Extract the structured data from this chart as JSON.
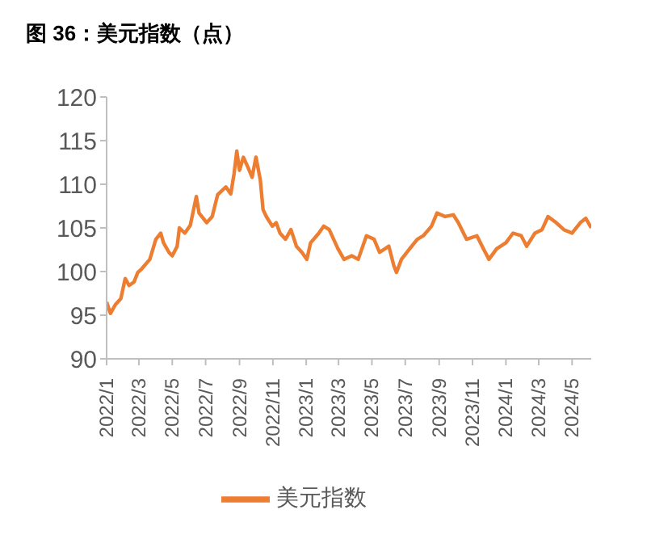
{
  "chart_data": {
    "type": "line",
    "title": "图 36：美元指数（点）",
    "x": [
      "2022-01-01",
      "2022-01-08",
      "2022-01-17",
      "2022-01-27",
      "2022-02-04",
      "2022-02-11",
      "2022-02-20",
      "2022-02-27",
      "2022-03-06",
      "2022-03-21",
      "2022-04-01",
      "2022-04-10",
      "2022-04-15",
      "2022-04-25",
      "2022-05-01",
      "2022-05-10",
      "2022-05-14",
      "2022-05-24",
      "2022-06-03",
      "2022-06-14",
      "2022-06-19",
      "2022-07-03",
      "2022-07-13",
      "2022-07-23",
      "2022-08-07",
      "2022-08-16",
      "2022-08-22",
      "2022-08-27",
      "2022-09-01",
      "2022-09-08",
      "2022-09-16",
      "2022-09-24",
      "2022-10-01",
      "2022-10-09",
      "2022-10-14",
      "2022-10-20",
      "2022-10-31",
      "2022-11-07",
      "2022-11-14",
      "2022-11-24",
      "2022-12-04",
      "2022-12-14",
      "2022-12-24",
      "2023-01-02",
      "2023-01-09",
      "2023-01-24",
      "2023-02-02",
      "2023-02-12",
      "2023-02-28",
      "2023-03-11",
      "2023-03-25",
      "2023-04-06",
      "2023-04-21",
      "2023-05-05",
      "2023-05-15",
      "2023-06-01",
      "2023-06-10",
      "2023-06-15",
      "2023-06-24",
      "2023-07-09",
      "2023-07-23",
      "2023-08-03",
      "2023-08-18",
      "2023-08-28",
      "2023-09-12",
      "2023-09-27",
      "2023-10-06",
      "2023-10-21",
      "2023-11-09",
      "2023-11-21",
      "2023-12-01",
      "2023-12-15",
      "2024-01-01",
      "2024-01-14",
      "2024-01-29",
      "2024-02-08",
      "2024-02-23",
      "2024-03-07",
      "2024-03-18",
      "2024-04-02",
      "2024-04-16",
      "2024-05-01",
      "2024-05-16",
      "2024-05-26",
      "2024-06-05"
    ],
    "series": [
      {
        "name": "美元指数",
        "color": "#ed7d31",
        "values": [
          96.5,
          95.2,
          96.2,
          96.9,
          99.2,
          98.4,
          98.8,
          99.9,
          100.3,
          101.4,
          103.7,
          104.4,
          103.3,
          102.2,
          101.8,
          102.9,
          105.0,
          104.4,
          105.3,
          108.6,
          106.7,
          105.6,
          106.3,
          108.8,
          109.7,
          108.9,
          111.2,
          113.8,
          111.6,
          113.1,
          112.0,
          110.8,
          113.1,
          110.5,
          107.1,
          106.3,
          105.2,
          105.6,
          104.4,
          103.7,
          104.8,
          102.9,
          102.2,
          101.4,
          103.3,
          104.4,
          105.2,
          104.8,
          102.6,
          101.4,
          101.8,
          101.4,
          104.1,
          103.7,
          102.2,
          102.9,
          100.7,
          99.9,
          101.4,
          102.6,
          103.7,
          104.1,
          105.2,
          106.7,
          106.3,
          106.5,
          105.6,
          103.7,
          104.1,
          102.6,
          101.4,
          102.6,
          103.3,
          104.4,
          104.1,
          102.9,
          104.4,
          104.8,
          106.3,
          105.6,
          104.8,
          104.4,
          105.6,
          106.1,
          105.0
        ]
      }
    ],
    "xlim": [
      "2022-01-01",
      "2024-06-05"
    ],
    "xticks": [
      {
        "value": "2022-01-01",
        "label": "2022/1"
      },
      {
        "value": "2022-03-01",
        "label": "2022/3"
      },
      {
        "value": "2022-05-01",
        "label": "2022/5"
      },
      {
        "value": "2022-07-01",
        "label": "2022/7"
      },
      {
        "value": "2022-09-01",
        "label": "2022/9"
      },
      {
        "value": "2022-11-01",
        "label": "2022/11"
      },
      {
        "value": "2023-01-01",
        "label": "2023/1"
      },
      {
        "value": "2023-03-01",
        "label": "2023/3"
      },
      {
        "value": "2023-05-01",
        "label": "2023/5"
      },
      {
        "value": "2023-07-01",
        "label": "2023/7"
      },
      {
        "value": "2023-09-01",
        "label": "2023/9"
      },
      {
        "value": "2023-11-01",
        "label": "2023/11"
      },
      {
        "value": "2024-01-01",
        "label": "2024/1"
      },
      {
        "value": "2024-03-01",
        "label": "2024/3"
      },
      {
        "value": "2024-05-01",
        "label": "2024/5"
      }
    ],
    "ylim": [
      90,
      120
    ],
    "yticks": [
      90,
      95,
      100,
      105,
      110,
      115,
      120
    ],
    "grid": false,
    "legend": "bottom",
    "marker": "none",
    "line_style": "solid"
  }
}
